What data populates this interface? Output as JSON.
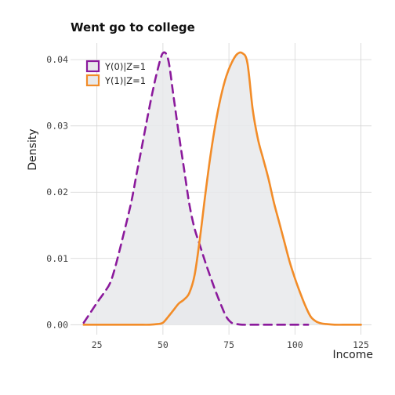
{
  "chart_data": {
    "type": "area",
    "title": "Went go to college",
    "xlabel": "Income",
    "ylabel": "Density",
    "xlim": [
      15,
      129
    ],
    "ylim": [
      -0.0015,
      0.0425
    ],
    "x_ticks": [
      25,
      50,
      75,
      100,
      125
    ],
    "y_ticks": [
      0.0,
      0.01,
      0.02,
      0.03,
      0.04
    ],
    "x_tick_labels": [
      "25",
      "50",
      "75",
      "100",
      "125"
    ],
    "y_tick_labels": [
      "0.00",
      "0.01",
      "0.02",
      "0.03",
      "0.04"
    ],
    "grid": true,
    "legend_position": "top-left",
    "series": [
      {
        "name": "Y(0)|Z=1",
        "color": "#8B1A9C",
        "line_style": "dashed",
        "fill": "#e8e9eb",
        "x": [
          20,
          22,
          25,
          28,
          30,
          32,
          35,
          38,
          40,
          42,
          44,
          46,
          48,
          50,
          52,
          54,
          56,
          58,
          60,
          62,
          64,
          66,
          68,
          70,
          72,
          74,
          76,
          78,
          80,
          85,
          90,
          95,
          100,
          105
        ],
        "y": [
          0.0003,
          0.0015,
          0.0033,
          0.005,
          0.0063,
          0.0088,
          0.0135,
          0.0185,
          0.0227,
          0.0268,
          0.031,
          0.035,
          0.0385,
          0.041,
          0.04,
          0.0345,
          0.0288,
          0.0235,
          0.0182,
          0.0145,
          0.012,
          0.0095,
          0.0072,
          0.005,
          0.003,
          0.0012,
          0.0003,
          0.0001,
          0.0,
          0.0,
          0.0,
          0.0,
          0.0,
          0.0
        ]
      },
      {
        "name": "Y(1)|Z=1",
        "color": "#F28C28",
        "line_style": "solid",
        "fill": "#e8e9eb",
        "x": [
          20,
          30,
          40,
          45,
          48,
          50,
          52,
          54,
          56,
          58,
          60,
          62,
          64,
          66,
          68,
          70,
          72,
          74,
          76,
          78,
          80,
          82,
          84,
          86,
          88,
          90,
          92,
          94,
          96,
          98,
          100,
          102,
          104,
          106,
          108,
          110,
          112,
          115,
          120,
          125
        ],
        "y": [
          0.0,
          0.0,
          0.0,
          0.0,
          0.0001,
          0.0003,
          0.0012,
          0.0022,
          0.0032,
          0.0038,
          0.0048,
          0.0075,
          0.013,
          0.0195,
          0.0255,
          0.0305,
          0.0345,
          0.0375,
          0.0395,
          0.0408,
          0.041,
          0.0395,
          0.0325,
          0.028,
          0.025,
          0.022,
          0.0185,
          0.0155,
          0.0125,
          0.0095,
          0.007,
          0.0048,
          0.0028,
          0.0012,
          0.0005,
          0.0002,
          0.0001,
          0.0,
          0.0,
          0.0
        ]
      }
    ]
  }
}
